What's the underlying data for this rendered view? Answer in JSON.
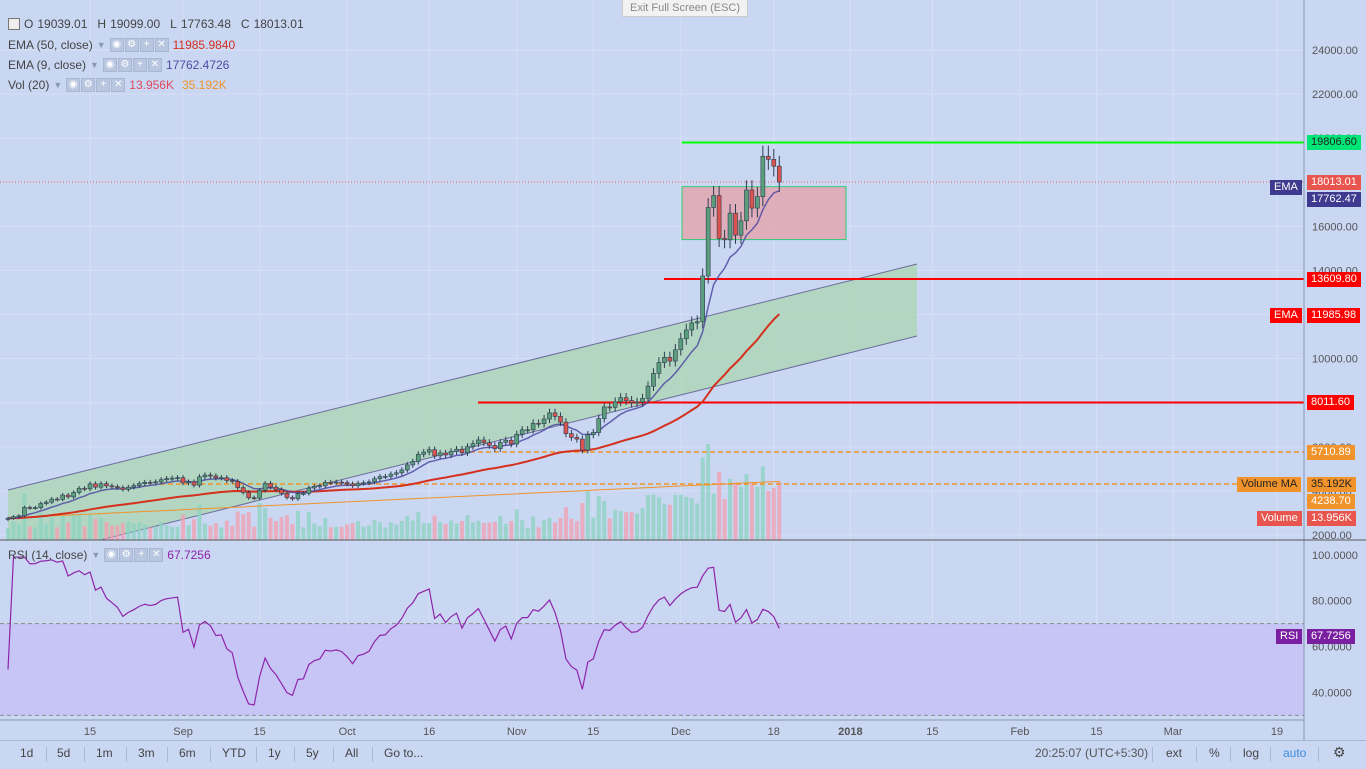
{
  "header": {
    "ohlc": {
      "o_label": "O",
      "o": "19039.01",
      "h_label": "H",
      "h": "19099.00",
      "l_label": "L",
      "l": "17763.48",
      "c_label": "C",
      "c": "18013.01"
    },
    "ema50": {
      "label": "EMA (50, close)",
      "value": "11985.9840"
    },
    "ema9": {
      "label": "EMA (9, close)",
      "value": "17762.4726"
    },
    "vol": {
      "label": "Vol (20)",
      "value1": "13.956K",
      "value2": "35.192K"
    },
    "rsi": {
      "label": "RSI (14, close)",
      "value": "67.7256"
    },
    "exit_fullscreen": "Exit Full Screen (ESC)"
  },
  "price_labels": {
    "resistance": "19806.60",
    "close": "18013.01",
    "ema9_tag": "EMA",
    "ema9": "17762.47",
    "support1": "13609.80",
    "ema50_tag": "EMA",
    "ema50": "11985.98",
    "support2": "8011.60",
    "dashed1": "5710.89",
    "volume_ma_tag": "Volume MA",
    "volume_ma": "35.192K",
    "dashed2": "4238.70",
    "volume_tag": "Volume",
    "volume": "13.956K",
    "rsi_tag": "RSI",
    "rsi": "67.7256"
  },
  "toolbar": {
    "ranges": [
      "1d",
      "5d",
      "1m",
      "3m",
      "6m",
      "YTD",
      "1y",
      "5y",
      "All"
    ],
    "goto": "Go to...",
    "time": "20:25:07 (UTC+5:30)",
    "ext": "ext",
    "pct": "%",
    "log": "log",
    "auto": "auto"
  },
  "colors": {
    "background": "#c9d7f3",
    "up_candle": "#5b9e7c",
    "down_candle": "#d9534f",
    "ema50": "#d4301e",
    "ema9": "#4f4aa1",
    "rsi": "#8e24aa",
    "resistance": "#00ff00",
    "support": "#ff0000",
    "dashed": "#f0932b"
  },
  "chart_data": [
    {
      "type": "candlestick",
      "name": "price",
      "x_ticks": [
        "15",
        "Sep",
        "15",
        "Oct",
        "16",
        "Nov",
        "15",
        "Dec",
        "18",
        "2018",
        "15",
        "Feb",
        "15",
        "Mar",
        "19"
      ],
      "y_ticks": [
        2000,
        4000,
        6000,
        8000,
        10000,
        12000,
        14000,
        16000,
        18000,
        20000,
        22000,
        24000
      ],
      "ylim": [
        2000,
        25500
      ],
      "candles_start": "2017-07-31",
      "closes": [
        2760,
        2830,
        2870,
        3250,
        3230,
        3240,
        3430,
        3490,
        3630,
        3620,
        3810,
        3730,
        3930,
        4120,
        4090,
        4320,
        4170,
        4330,
        4230,
        4190,
        4150,
        4070,
        4170,
        4240,
        4330,
        4390,
        4380,
        4410,
        4510,
        4560,
        4580,
        4600,
        4360,
        4410,
        4260,
        4640,
        4720,
        4680,
        4590,
        4600,
        4470,
        4430,
        4150,
        3930,
        3690,
        3670,
        4030,
        4340,
        4170,
        4060,
        3890,
        3700,
        3640,
        3880,
        3890,
        4130,
        4200,
        4230,
        4390,
        4380,
        4400,
        4380,
        4320,
        4240,
        4350,
        4370,
        4410,
        4550,
        4650,
        4660,
        4760,
        4820,
        4950,
        5180,
        5330,
        5660,
        5760,
        5870,
        5590,
        5720,
        5630,
        5790,
        5890,
        5730,
        6010,
        6140,
        6310,
        6190,
        6060,
        5920,
        6200,
        6300,
        6130,
        6570,
        6770,
        6770,
        7070,
        7050,
        7260,
        7540,
        7380,
        7120,
        6600,
        6430,
        6350,
        5850,
        6550,
        6650,
        7280,
        7810,
        7790,
        8040,
        8230,
        8100,
        8000,
        8030,
        8200,
        8750,
        9330,
        9820,
        10060,
        9890,
        10400,
        10900,
        11300,
        11620,
        11670,
        13750,
        16860,
        17400,
        15450,
        15390,
        16600,
        15600,
        16250,
        17650,
        16830,
        17350,
        19180,
        19040,
        18730,
        18010
      ],
      "ema50_range": [
        2830,
        11986
      ],
      "ema9_last": 17762,
      "rectangle": {
        "top": 17800,
        "bottom": 15400
      },
      "channel": "ascending",
      "horizontal_levels": [
        19806.6,
        13609.8,
        8011.6
      ],
      "dashed_levels": [
        5710.89,
        4238.7
      ]
    },
    {
      "type": "line",
      "name": "RSI (14, close)",
      "y_ticks": [
        40,
        60,
        80,
        100
      ],
      "ylim": [
        28,
        106
      ],
      "overbought": 70,
      "oversold": 30,
      "last": 67.7256
    },
    {
      "type": "bar",
      "name": "Vol (20)",
      "last": "13.956K",
      "ma": "35.192K"
    }
  ]
}
